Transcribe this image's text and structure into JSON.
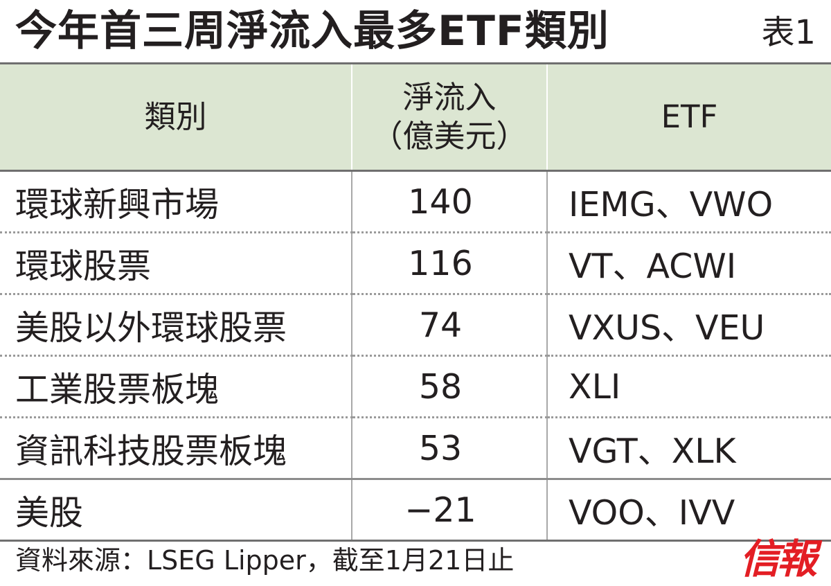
{
  "title": "今年首三周淨流入最多ETF類別",
  "table_label": "表1",
  "headers": {
    "category": "類別",
    "inflow_line1": "淨流入",
    "inflow_line2": "（億美元）",
    "etf": "ETF"
  },
  "rows": [
    {
      "category": "環球新興市場",
      "inflow": "140",
      "etf": "IEMG、VWO"
    },
    {
      "category": "環球股票",
      "inflow": "116",
      "etf": "VT、ACWI"
    },
    {
      "category": "美股以外環球股票",
      "inflow": "74",
      "etf": "VXUS、VEU"
    },
    {
      "category": "工業股票板塊",
      "inflow": "58",
      "etf": "XLI"
    },
    {
      "category": "資訊科技股票板塊",
      "inflow": "53",
      "etf": "VGT、XLK"
    },
    {
      "category": "美股",
      "inflow": "−21",
      "etf": "VOO、IVV"
    }
  ],
  "source": "資料來源：LSEG Lipper，截至1月21日止",
  "brand": "信報"
}
